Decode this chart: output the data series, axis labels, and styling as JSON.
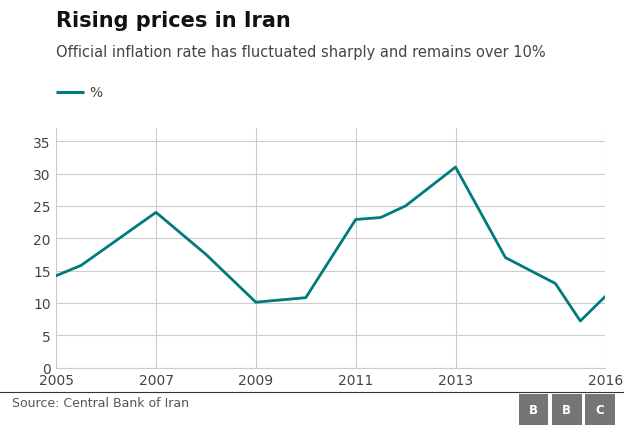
{
  "title": "Rising prices in Iran",
  "subtitle": "Official inflation rate has fluctuated sharply and remains over 10%",
  "legend_label": "%",
  "source": "Source: Central Bank of Iran",
  "years": [
    2005,
    2005.5,
    2007,
    2008,
    2009,
    2010,
    2011,
    2011.5,
    2012,
    2013,
    2014,
    2015,
    2015.5,
    2016
  ],
  "values": [
    14.2,
    15.8,
    24.0,
    17.5,
    10.1,
    10.8,
    22.9,
    23.2,
    25.0,
    31.0,
    17.0,
    13.0,
    7.2,
    11.0
  ],
  "line_color": "#007b7b",
  "background_color": "#ffffff",
  "grid_color": "#cccccc",
  "xlim": [
    2005,
    2016
  ],
  "ylim": [
    0,
    37
  ],
  "yticks": [
    0,
    5,
    10,
    15,
    20,
    25,
    30,
    35
  ],
  "xticks": [
    2005,
    2007,
    2009,
    2011,
    2013,
    2016
  ],
  "title_fontsize": 15,
  "subtitle_fontsize": 10.5,
  "tick_fontsize": 10,
  "source_fontsize": 9,
  "line_width": 2.0,
  "bbc_box_color": "#757575",
  "bbc_text_color": "#ffffff",
  "title_color": "#111111",
  "subtitle_color": "#444444",
  "tick_color": "#444444",
  "source_color": "#555555",
  "separator_color": "#333333"
}
